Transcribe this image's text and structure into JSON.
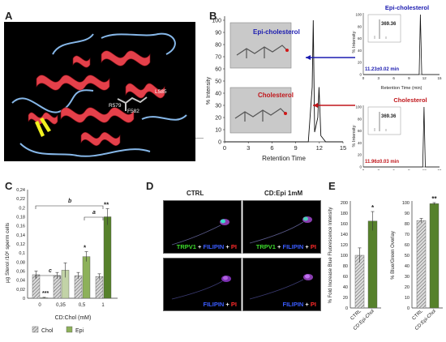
{
  "panel_labels": {
    "a": "A",
    "b": "B",
    "c": "C",
    "d": "D",
    "e": "E"
  },
  "panel_a": {
    "residues": [
      "L585",
      "R579",
      "F582"
    ],
    "colors": {
      "background": "#000000",
      "helix": "#e4404a",
      "coil": "#86b7e8",
      "sheet": "#f0f020",
      "ligand": "#b8b8b8"
    }
  },
  "panel_b": {
    "ylabel": "% Intensity",
    "xlabel": "Retention Time",
    "yticks": [
      "0",
      "10",
      "20",
      "30",
      "40",
      "50",
      "60",
      "70",
      "80",
      "90",
      "100"
    ],
    "xticks": [
      "0",
      "3",
      "6",
      "9",
      "12",
      "15"
    ],
    "epi_label": "Epi-cholesterol",
    "chol_label": "Cholesterol",
    "inset_epi": {
      "title": "Epi-cholesterol",
      "ylabel": "% Intensity",
      "xlabel": "Retention Time (min)",
      "mz": "369.36",
      "rt": "11.23±0.02 min"
    },
    "inset_chol": {
      "title": "Cholesterol",
      "ylabel": "% Intensity",
      "xlabel": "Retention Time (min)",
      "mz": "369.36",
      "rt": "11.96±0.03 min"
    },
    "inset_xticks": [
      "0",
      "3",
      "6",
      "9",
      "12",
      "15"
    ],
    "inset_yticks": [
      "0",
      "20",
      "40",
      "60",
      "80",
      "100"
    ],
    "colors": {
      "epi": "#1b1bb0",
      "chol": "#c0161b",
      "trace": "#111111"
    }
  },
  "panel_c": {
    "ylabel": "µg Sterol /10⁶ sperm cells",
    "xlabel": "CD:Chol (mM)",
    "legend": [
      "Chol",
      "Epi"
    ],
    "colors": {
      "chol": "#cfcfcf",
      "epi_light": "#c2d3a7",
      "epi_mid": "#8db15a",
      "epi_dark": "#56812b"
    },
    "sig": {
      "c": "c",
      "b": "b",
      "a": "a",
      "star1": "*",
      "star2": "**",
      "star3": "***"
    }
  },
  "panel_d": {
    "title_left": "CTRL",
    "title_right": "CD:Epi 1mM",
    "cap_trpv1": "TRPV1",
    "cap_filipin": "FILIPIN",
    "cap_pi": "PI",
    "plus": " + "
  },
  "panel_e": {
    "left": {
      "ylabel": "% Fold Increase Blue Fluorescence Intensity",
      "yticks": [
        "0",
        "20",
        "40",
        "60",
        "80",
        "100",
        "120",
        "140",
        "160",
        "180",
        "200"
      ],
      "sig": "*"
    },
    "right": {
      "ylabel": "% Blue/Green Overlay",
      "yticks": [
        "0",
        "10",
        "20",
        "30",
        "40",
        "50",
        "60",
        "70",
        "80",
        "90",
        "100"
      ],
      "sig": "**"
    },
    "categories": [
      "CTRL",
      "CD:Epi-Chol"
    ]
  },
  "chart_data": [
    {
      "type": "line",
      "title": "",
      "xlabel": "Retention Time",
      "ylabel": "% Intensity",
      "xlim": [
        0,
        15
      ],
      "ylim": [
        0,
        100
      ],
      "series": [
        {
          "name": "Epi-cholesterol",
          "x": [
            0,
            10.6,
            11.1,
            11.23,
            11.4,
            11.8,
            11.96,
            12.2,
            12.8,
            15
          ],
          "y": [
            0,
            0,
            45,
            100,
            8,
            20,
            45,
            5,
            0,
            0
          ]
        }
      ]
    },
    {
      "type": "line",
      "title": "Epi-cholesterol",
      "xlabel": "Retention Time (min)",
      "ylabel": "% Intensity",
      "xlim": [
        0,
        15
      ],
      "ylim": [
        0,
        100
      ],
      "series": [
        {
          "x": [
            0,
            11.0,
            11.23,
            11.5,
            15
          ],
          "y": [
            0,
            0,
            100,
            0,
            0
          ]
        }
      ]
    },
    {
      "type": "line",
      "title": "Cholesterol",
      "xlabel": "Retention Time (min)",
      "ylabel": "% Intensity",
      "xlim": [
        0,
        15
      ],
      "ylim": [
        0,
        100
      ],
      "series": [
        {
          "x": [
            0,
            11.7,
            11.96,
            12.2,
            15
          ],
          "y": [
            0,
            0,
            100,
            0,
            0
          ]
        }
      ]
    },
    {
      "type": "bar",
      "xlabel": "CD:Chol (mM)",
      "ylabel": "µg Sterol /10⁶ sperm cells",
      "categories": [
        "0",
        "0,35",
        "0,5",
        "1"
      ],
      "ylim": [
        0,
        0.24
      ],
      "yticks": [
        "0",
        "0,02",
        "0,04",
        "0,06",
        "0,08",
        "0,1",
        "0,12",
        "0,14",
        "0,16",
        "0,18",
        "0,2",
        "0,22",
        "0,24"
      ],
      "series": [
        {
          "name": "Chol",
          "values": [
            0.052,
            0.05,
            0.05,
            0.048
          ],
          "errors": [
            0.008,
            0.007,
            0.007,
            0.006
          ]
        },
        {
          "name": "Epi",
          "values": [
            0.001,
            0.062,
            0.092,
            0.18
          ],
          "errors": [
            0.001,
            0.016,
            0.011,
            0.018
          ]
        }
      ]
    },
    {
      "type": "bar",
      "ylabel": "% Fold Increase Blue Fluorescence Intensity",
      "categories": [
        "CTRL",
        "CD:Epi-Chol"
      ],
      "ylim": [
        0,
        200
      ],
      "values": [
        100,
        165
      ],
      "errors": [
        14,
        18
      ]
    },
    {
      "type": "bar",
      "ylabel": "% Blue/Green Overlay",
      "categories": [
        "CTRL",
        "CD:Epi-Chol"
      ],
      "ylim": [
        0,
        100
      ],
      "values": [
        83,
        99
      ],
      "errors": [
        2,
        1
      ]
    }
  ]
}
